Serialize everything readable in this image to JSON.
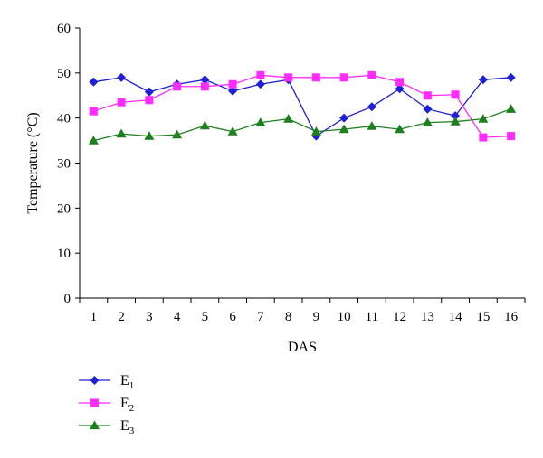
{
  "chart_data": {
    "type": "line",
    "title": "",
    "xlabel": "DAS",
    "ylabel": "Temperature (°C)",
    "x": [
      1,
      2,
      3,
      4,
      5,
      6,
      7,
      8,
      9,
      10,
      11,
      12,
      13,
      14,
      15,
      16
    ],
    "xlim": [
      0.5,
      16.5
    ],
    "ylim": [
      0,
      60
    ],
    "yticks": [
      0,
      10,
      20,
      30,
      40,
      50,
      60
    ],
    "grid": false,
    "legend_position": "bottom-left",
    "series": [
      {
        "name": "E",
        "subscript": "1",
        "color": "#1f1fd6",
        "marker": "diamond",
        "values": [
          48,
          49,
          45.8,
          47.5,
          48.5,
          46,
          47.5,
          48.5,
          36,
          40,
          42.5,
          46.5,
          42,
          40.5,
          48.5,
          49
        ]
      },
      {
        "name": "E",
        "subscript": "2",
        "color": "#ff2bff",
        "marker": "square",
        "values": [
          41.5,
          43.5,
          44,
          47,
          47,
          47.5,
          49.5,
          49,
          49,
          49,
          49.5,
          48,
          45,
          45.2,
          35.7,
          36
        ]
      },
      {
        "name": "E",
        "subscript": "3",
        "color": "#1e7f1e",
        "marker": "triangle",
        "values": [
          35,
          36.5,
          36,
          36.3,
          38.3,
          37,
          39,
          39.8,
          37,
          37.5,
          38.2,
          37.5,
          39,
          39.2,
          39.8,
          42
        ]
      }
    ]
  }
}
